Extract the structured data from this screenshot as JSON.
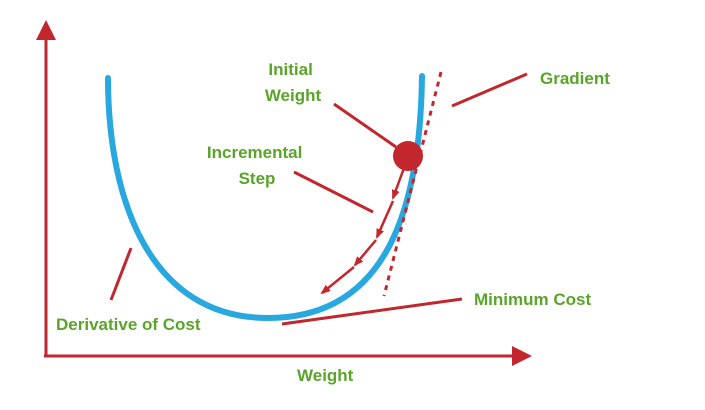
{
  "colors": {
    "axis": "#c1272d",
    "curve": "#29a8df",
    "label": "#5aa42a",
    "pointer": "#c1272d",
    "gradient_line": "#c1272d",
    "point": "#c1272d"
  },
  "labels": {
    "initial_weight": [
      "Initial",
      "Weight"
    ],
    "incremental_step": [
      "Incremental",
      "Step"
    ],
    "gradient": "Gradient",
    "minimum_cost": "Minimum Cost",
    "derivative_of_cost": "Derivative of Cost",
    "weight_axis": "Weight"
  },
  "icons": {
    "axis_arrow": "arrowhead-icon",
    "step_arrow": "arrowhead-icon",
    "initial_point": "filled-circle-icon"
  },
  "steps": {
    "count": 4
  }
}
